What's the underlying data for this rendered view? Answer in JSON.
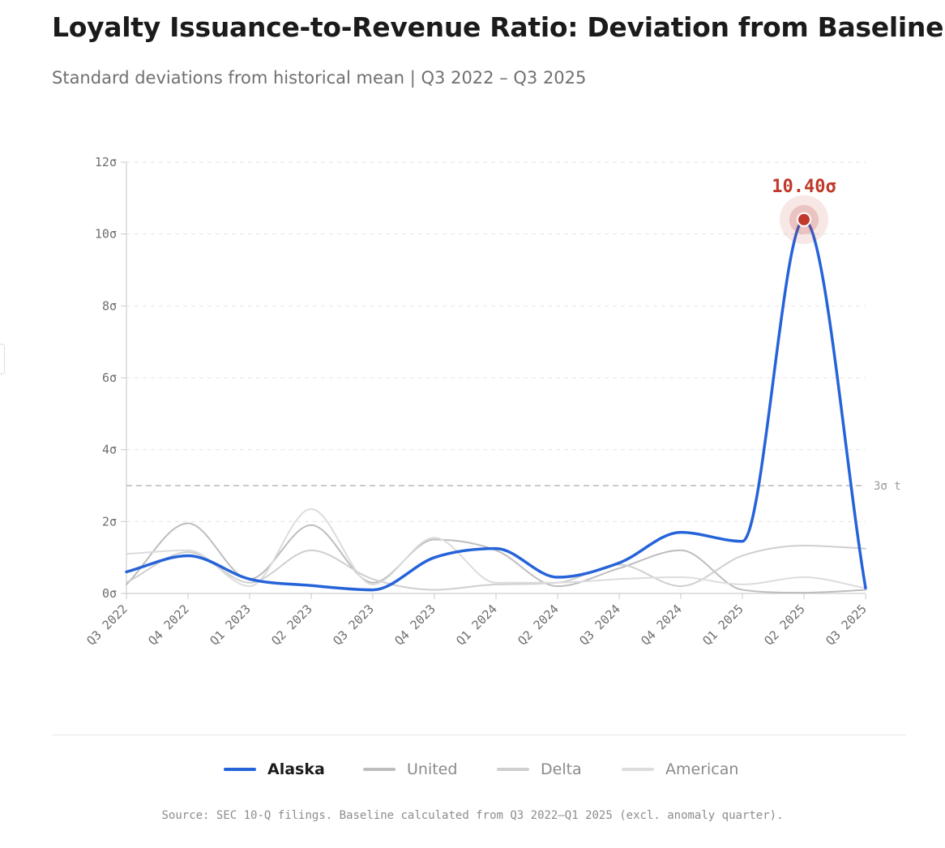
{
  "header": {
    "title": "Loyalty Issuance-to-Revenue Ratio: Deviation from Baseline",
    "subtitle": "Standard deviations from historical mean | Q3 2022 – Q3 2025"
  },
  "chart_data": {
    "type": "line",
    "title": "Loyalty Issuance-to-Revenue Ratio: Deviation from Baseline",
    "subtitle": "Standard deviations from historical mean | Q3 2022 – Q3 2025",
    "xlabel": "",
    "ylabel": "",
    "categories": [
      "Q3 2022",
      "Q4 2022",
      "Q1 2023",
      "Q2 2023",
      "Q3 2023",
      "Q4 2023",
      "Q1 2024",
      "Q2 2024",
      "Q3 2024",
      "Q4 2024",
      "Q1 2025",
      "Q2 2025",
      "Q3 2025"
    ],
    "ylim": [
      0,
      12
    ],
    "yticks": [
      0,
      2,
      4,
      6,
      8,
      10,
      12
    ],
    "ytick_labels": [
      "0σ",
      "2σ",
      "4σ",
      "6σ",
      "8σ",
      "10σ",
      "12σ"
    ],
    "grid": true,
    "series": [
      {
        "name": "Alaska",
        "color": "#2563d9",
        "highlight": true,
        "values": [
          0.6,
          1.05,
          0.4,
          0.22,
          0.1,
          1.0,
          1.25,
          0.45,
          0.85,
          1.7,
          1.45,
          10.4,
          0.15
        ]
      },
      {
        "name": "United",
        "color": "#bdbdbd",
        "highlight": false,
        "values": [
          0.25,
          1.95,
          0.4,
          1.9,
          0.3,
          1.5,
          1.2,
          0.2,
          0.7,
          1.2,
          0.1,
          0.02,
          0.1
        ]
      },
      {
        "name": "Delta",
        "color": "#cfcfcf",
        "highlight": false,
        "values": [
          0.3,
          1.15,
          0.3,
          1.2,
          0.4,
          0.1,
          0.25,
          0.3,
          0.8,
          0.2,
          1.05,
          1.33,
          1.25
        ]
      },
      {
        "name": "American",
        "color": "#dcdcdc",
        "highlight": false,
        "values": [
          1.1,
          1.2,
          0.2,
          2.35,
          0.25,
          1.55,
          0.3,
          0.3,
          0.4,
          0.45,
          0.25,
          0.45,
          0.15
        ]
      }
    ],
    "threshold": {
      "value": 3,
      "label": "3σ t"
    },
    "annotation": {
      "series": "Alaska",
      "category": "Q2 2025",
      "value": 10.4,
      "label": "10.40σ",
      "color": "#c0392b"
    },
    "legend_position": "bottom-center"
  },
  "legend": {
    "items": [
      {
        "label": "Alaska",
        "color": "#2563d9"
      },
      {
        "label": "United",
        "color": "#bdbdbd"
      },
      {
        "label": "Delta",
        "color": "#cfcfcf"
      },
      {
        "label": "American",
        "color": "#dcdcdc"
      }
    ]
  },
  "footer": {
    "source": "Source: SEC 10-Q filings. Baseline calculated from Q3 2022–Q1 2025 (excl. anomaly quarter)."
  }
}
